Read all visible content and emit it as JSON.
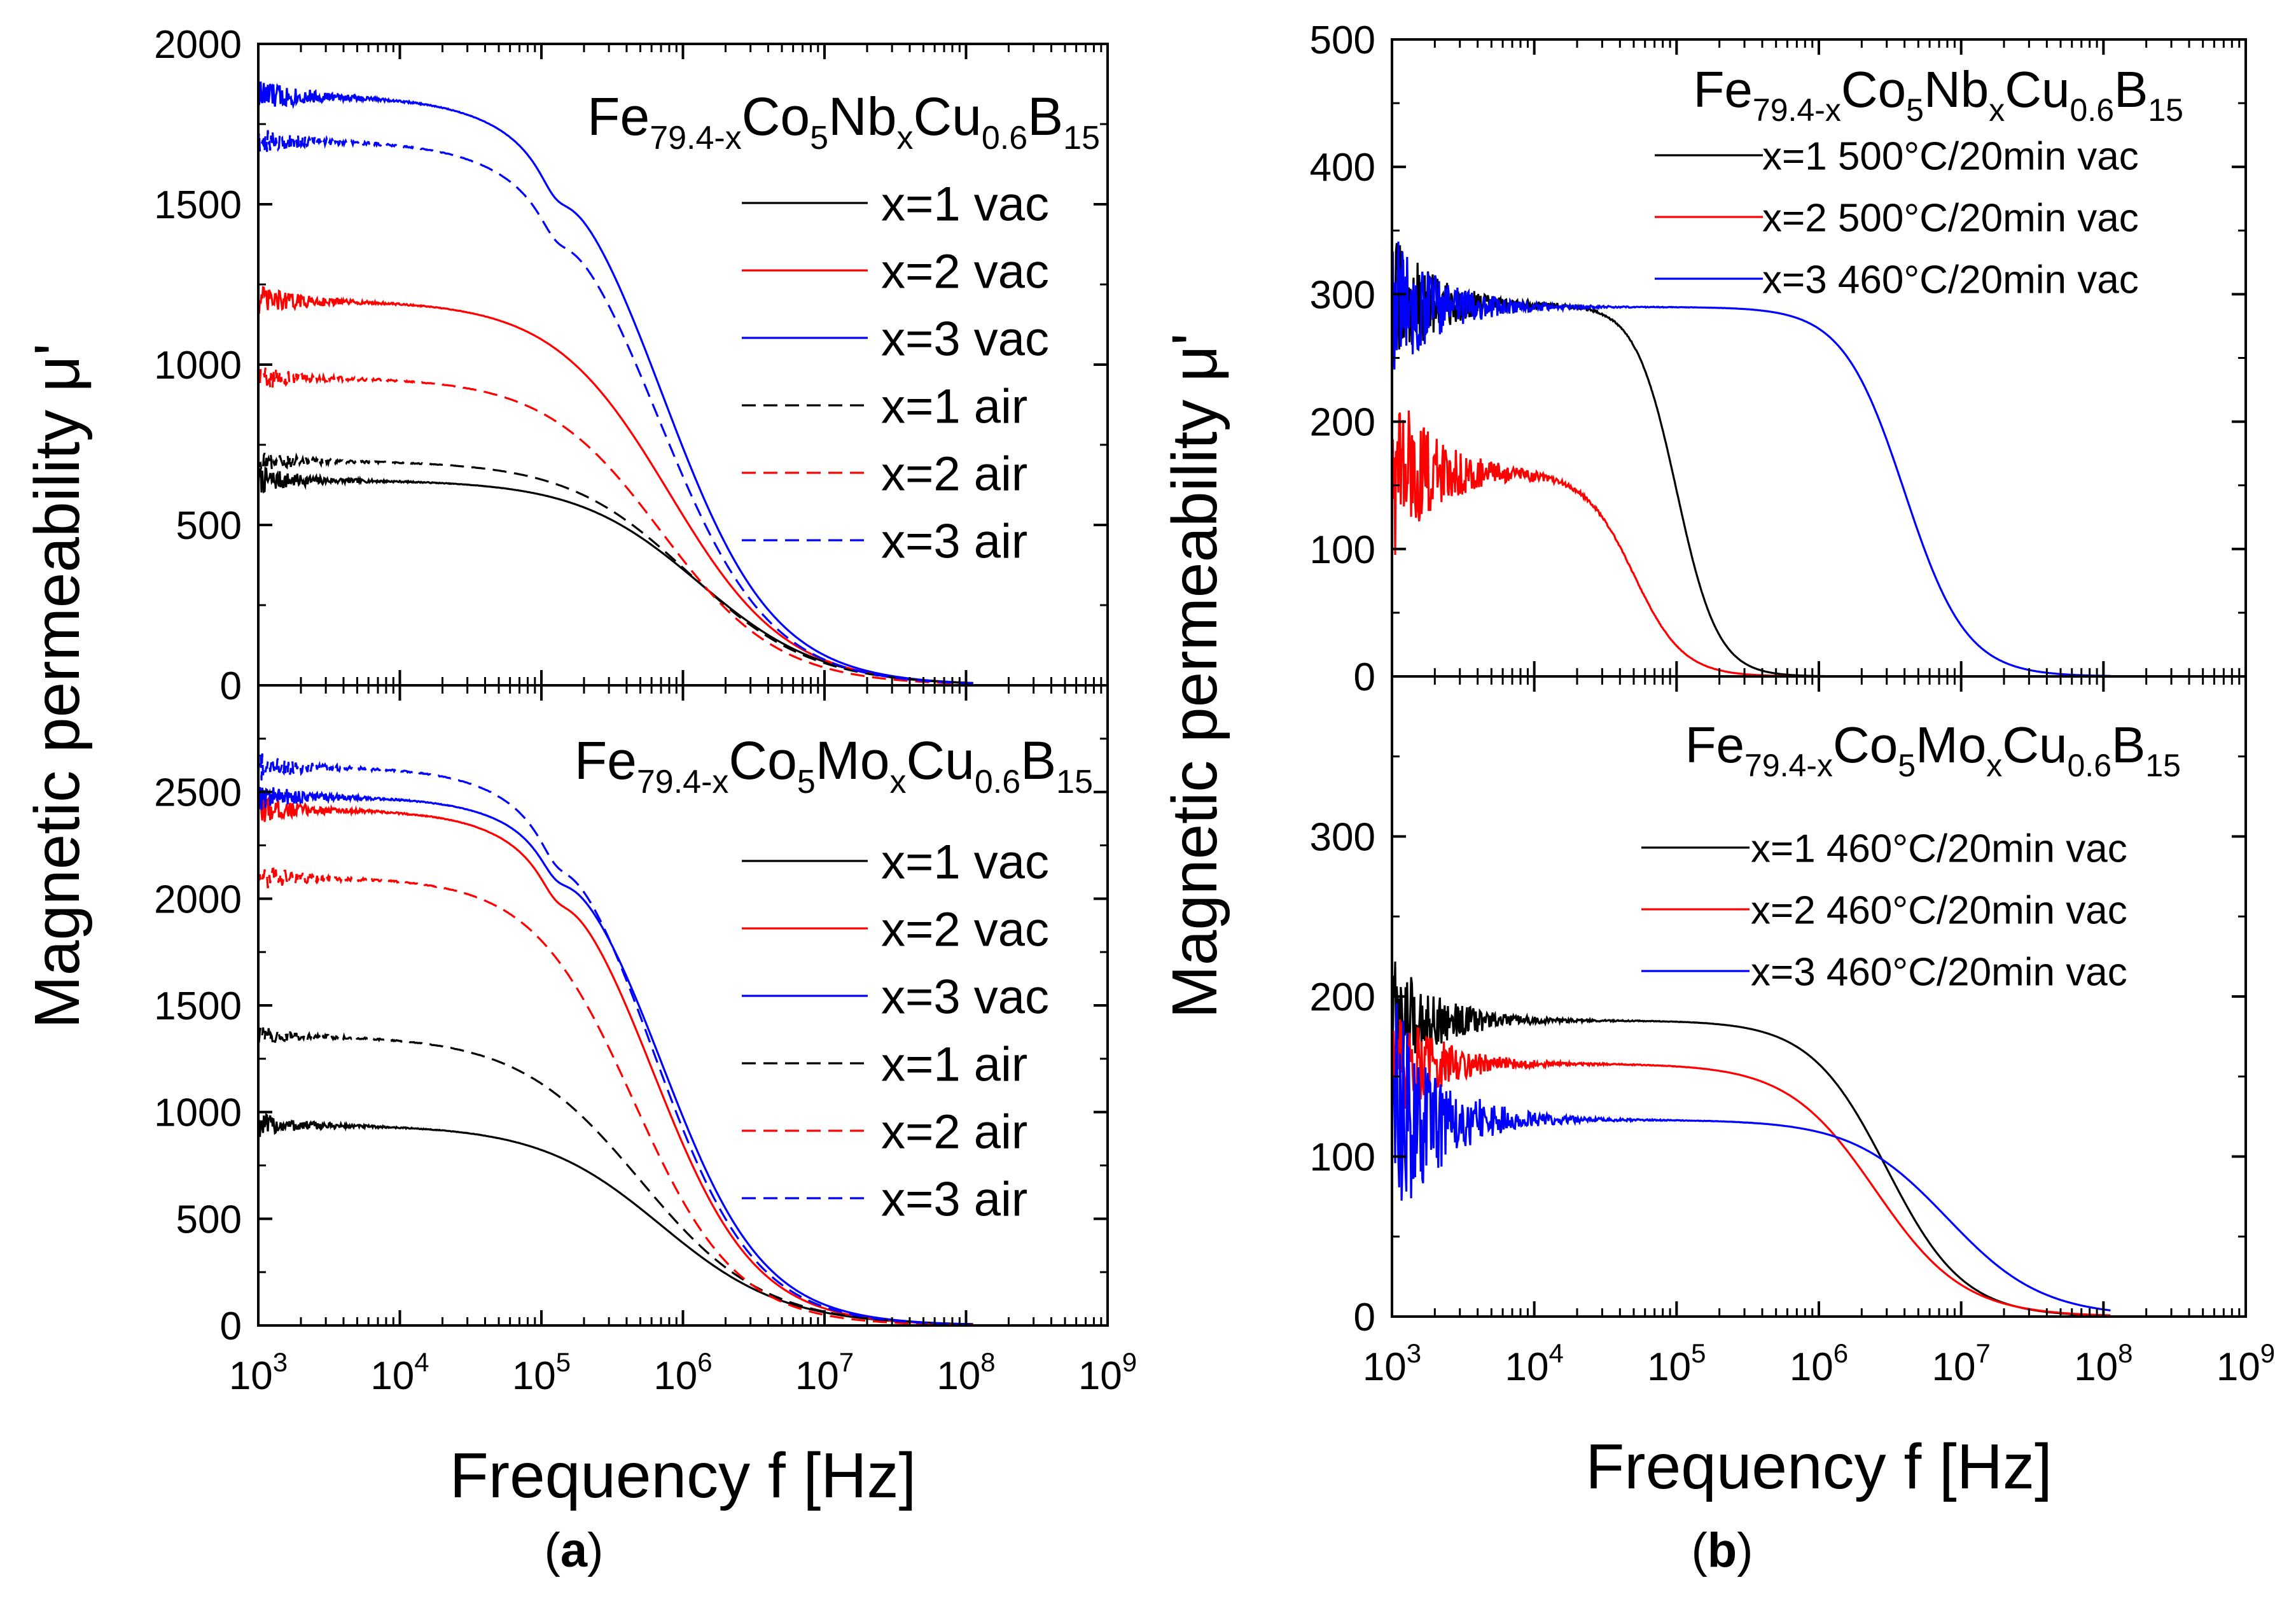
{
  "figure": {
    "labels": [
      {
        "open": "(",
        "letter": "a",
        "close": ")"
      },
      {
        "open": "(",
        "letter": "b",
        "close": ")"
      }
    ]
  },
  "chart_data": [
    {
      "id": "a-top",
      "type": "line",
      "xscale": "log",
      "xlim": [
        1000,
        1000000000
      ],
      "ylim": [
        0,
        2000
      ],
      "yticks": [
        0,
        500,
        1000,
        1500,
        2000
      ],
      "ylabel": "Magnetic permeability μ'",
      "title_parts": [
        [
          "Fe",
          ""
        ],
        [
          "79.4-x",
          "sub"
        ],
        [
          "Co",
          ""
        ],
        [
          "5",
          "sub"
        ],
        [
          "Nb",
          ""
        ],
        [
          "x",
          "sub"
        ],
        [
          "Cu",
          ""
        ],
        [
          "0.6",
          "sub"
        ],
        [
          "B",
          ""
        ],
        [
          "15",
          "sub"
        ]
      ],
      "legend_position": "top-right",
      "series": [
        {
          "name": "x=1 vac",
          "color": "#000000",
          "dash": "solid",
          "mu0": 640,
          "fc": 1300000,
          "n": 1.0,
          "noise": 45,
          "notch": 0
        },
        {
          "name": "x=2 vac",
          "color": "#ff0000",
          "dash": "solid",
          "mu0": 1200,
          "fc": 800000,
          "n": 1.05,
          "noise": 50,
          "notch": 0
        },
        {
          "name": "x=3 vac",
          "color": "#0000ff",
          "dash": "solid",
          "mu0": 1840,
          "fc": 700000,
          "n": 1.1,
          "noise": 60,
          "notch": 1
        },
        {
          "name": "x=1 air",
          "color": "#000000",
          "dash": "dashed",
          "mu0": 700,
          "fc": 1100000,
          "n": 1.0,
          "noise": 35,
          "notch": 0
        },
        {
          "name": "x=2 air",
          "color": "#ff0000",
          "dash": "dashed",
          "mu0": 960,
          "fc": 700000,
          "n": 1.05,
          "noise": 40,
          "notch": 0
        },
        {
          "name": "x=3 air",
          "color": "#0000ff",
          "dash": "dashed",
          "mu0": 1700,
          "fc": 650000,
          "n": 1.1,
          "noise": 45,
          "notch": 1
        }
      ]
    },
    {
      "id": "a-bot",
      "type": "line",
      "xscale": "log",
      "xlim": [
        1000,
        1000000000
      ],
      "ylim": [
        0,
        3000
      ],
      "yticks": [
        0,
        500,
        1000,
        1500,
        2000,
        2500
      ],
      "ylabel": "",
      "title_parts": [
        [
          "Fe",
          ""
        ],
        [
          "79.4-x",
          "sub"
        ],
        [
          "Co",
          ""
        ],
        [
          "5",
          "sub"
        ],
        [
          "Mo",
          ""
        ],
        [
          "x",
          "sub"
        ],
        [
          "Cu",
          ""
        ],
        [
          "0.6",
          "sub"
        ],
        [
          "B",
          ""
        ],
        [
          "15",
          "sub"
        ]
      ],
      "xticks": [
        1000,
        10000,
        100000,
        1000000,
        10000000,
        100000000,
        1000000000
      ],
      "xlabel": "Frequency f [Hz]",
      "legend_position": "right",
      "series": [
        {
          "name": "x=1 vac",
          "color": "#000000",
          "dash": "solid",
          "mu0": 940,
          "fc": 700000,
          "n": 1.0,
          "noise": 60,
          "notch": 0
        },
        {
          "name": "x=2 vac",
          "color": "#ff0000",
          "dash": "solid",
          "mu0": 2420,
          "fc": 600000,
          "n": 1.2,
          "noise": 70,
          "notch": 1
        },
        {
          "name": "x=3 vac",
          "color": "#0000ff",
          "dash": "solid",
          "mu0": 2480,
          "fc": 700000,
          "n": 1.2,
          "noise": 70,
          "notch": 1
        },
        {
          "name": "x=1 air",
          "color": "#000000",
          "dash": "dashed",
          "mu0": 1360,
          "fc": 500000,
          "n": 1.0,
          "noise": 45,
          "notch": 0
        },
        {
          "name": "x=2 air",
          "color": "#ff0000",
          "dash": "dashed",
          "mu0": 2100,
          "fc": 450000,
          "n": 1.2,
          "noise": 60,
          "notch": 0
        },
        {
          "name": "x=3 air",
          "color": "#0000ff",
          "dash": "dashed",
          "mu0": 2620,
          "fc": 600000,
          "n": 1.2,
          "noise": 70,
          "notch": 1
        }
      ]
    },
    {
      "id": "b-top",
      "type": "line",
      "xscale": "log",
      "xlim": [
        1000,
        1000000000
      ],
      "ylim": [
        0,
        500
      ],
      "yticks": [
        0,
        100,
        200,
        300,
        400,
        500
      ],
      "ylabel": "Magnetic permeability μ'",
      "title_parts": [
        [
          "Fe",
          ""
        ],
        [
          "79.4-x",
          "sub"
        ],
        [
          "Co",
          ""
        ],
        [
          "5",
          "sub"
        ],
        [
          "Nb",
          ""
        ],
        [
          "x",
          "sub"
        ],
        [
          "Cu",
          ""
        ],
        [
          "0.6",
          "sub"
        ],
        [
          "B",
          ""
        ],
        [
          "15",
          "sub"
        ]
      ],
      "legend_position": "top-right",
      "series": [
        {
          "name": "x=1 500°C/20min vac",
          "color": "#000000",
          "dash": "solid",
          "mu0": 292,
          "fc": 100000,
          "n": 3.0,
          "noise": 55,
          "notch": 0
        },
        {
          "name": "x=2 500°C/20min vac",
          "color": "#ff0000",
          "dash": "solid",
          "mu0": 160,
          "fc": 50000,
          "n": 2.5,
          "noise": 70,
          "notch": 0
        },
        {
          "name": "x=3 460°C/20min vac",
          "color": "#0000ff",
          "dash": "solid",
          "mu0": 290,
          "fc": 4000000,
          "n": 2.0,
          "noise": 60,
          "notch": 0
        }
      ]
    },
    {
      "id": "b-bot",
      "type": "line",
      "xscale": "log",
      "xlim": [
        1000,
        1000000000
      ],
      "ylim": [
        0,
        400
      ],
      "yticks": [
        0,
        100,
        200,
        300
      ],
      "ylabel": "",
      "title_parts": [
        [
          "Fe",
          ""
        ],
        [
          "79.4-x",
          "sub"
        ],
        [
          "Co",
          ""
        ],
        [
          "5",
          "sub"
        ],
        [
          "Mo",
          ""
        ],
        [
          "x",
          "sub"
        ],
        [
          "Cu",
          ""
        ],
        [
          "0.6",
          "sub"
        ],
        [
          "B",
          ""
        ],
        [
          "15",
          "sub"
        ]
      ],
      "xticks": [
        1000,
        10000,
        100000,
        1000000,
        10000000,
        100000000,
        1000000000
      ],
      "xlabel": "Frequency f [Hz]",
      "legend_position": "upper-right",
      "series": [
        {
          "name": "x=1 460°C/20min vac",
          "color": "#000000",
          "dash": "solid",
          "mu0": 185,
          "fc": 3000000,
          "n": 1.6,
          "noise": 40,
          "notch": 0
        },
        {
          "name": "x=2 460°C/20min vac",
          "color": "#ff0000",
          "dash": "solid",
          "mu0": 158,
          "fc": 2500000,
          "n": 1.4,
          "noise": 40,
          "notch": 0
        },
        {
          "name": "x=3 460°C/20min vac",
          "color": "#0000ff",
          "dash": "solid",
          "mu0": 123,
          "fc": 8000000,
          "n": 1.3,
          "noise": 80,
          "notch": 0
        }
      ]
    }
  ]
}
